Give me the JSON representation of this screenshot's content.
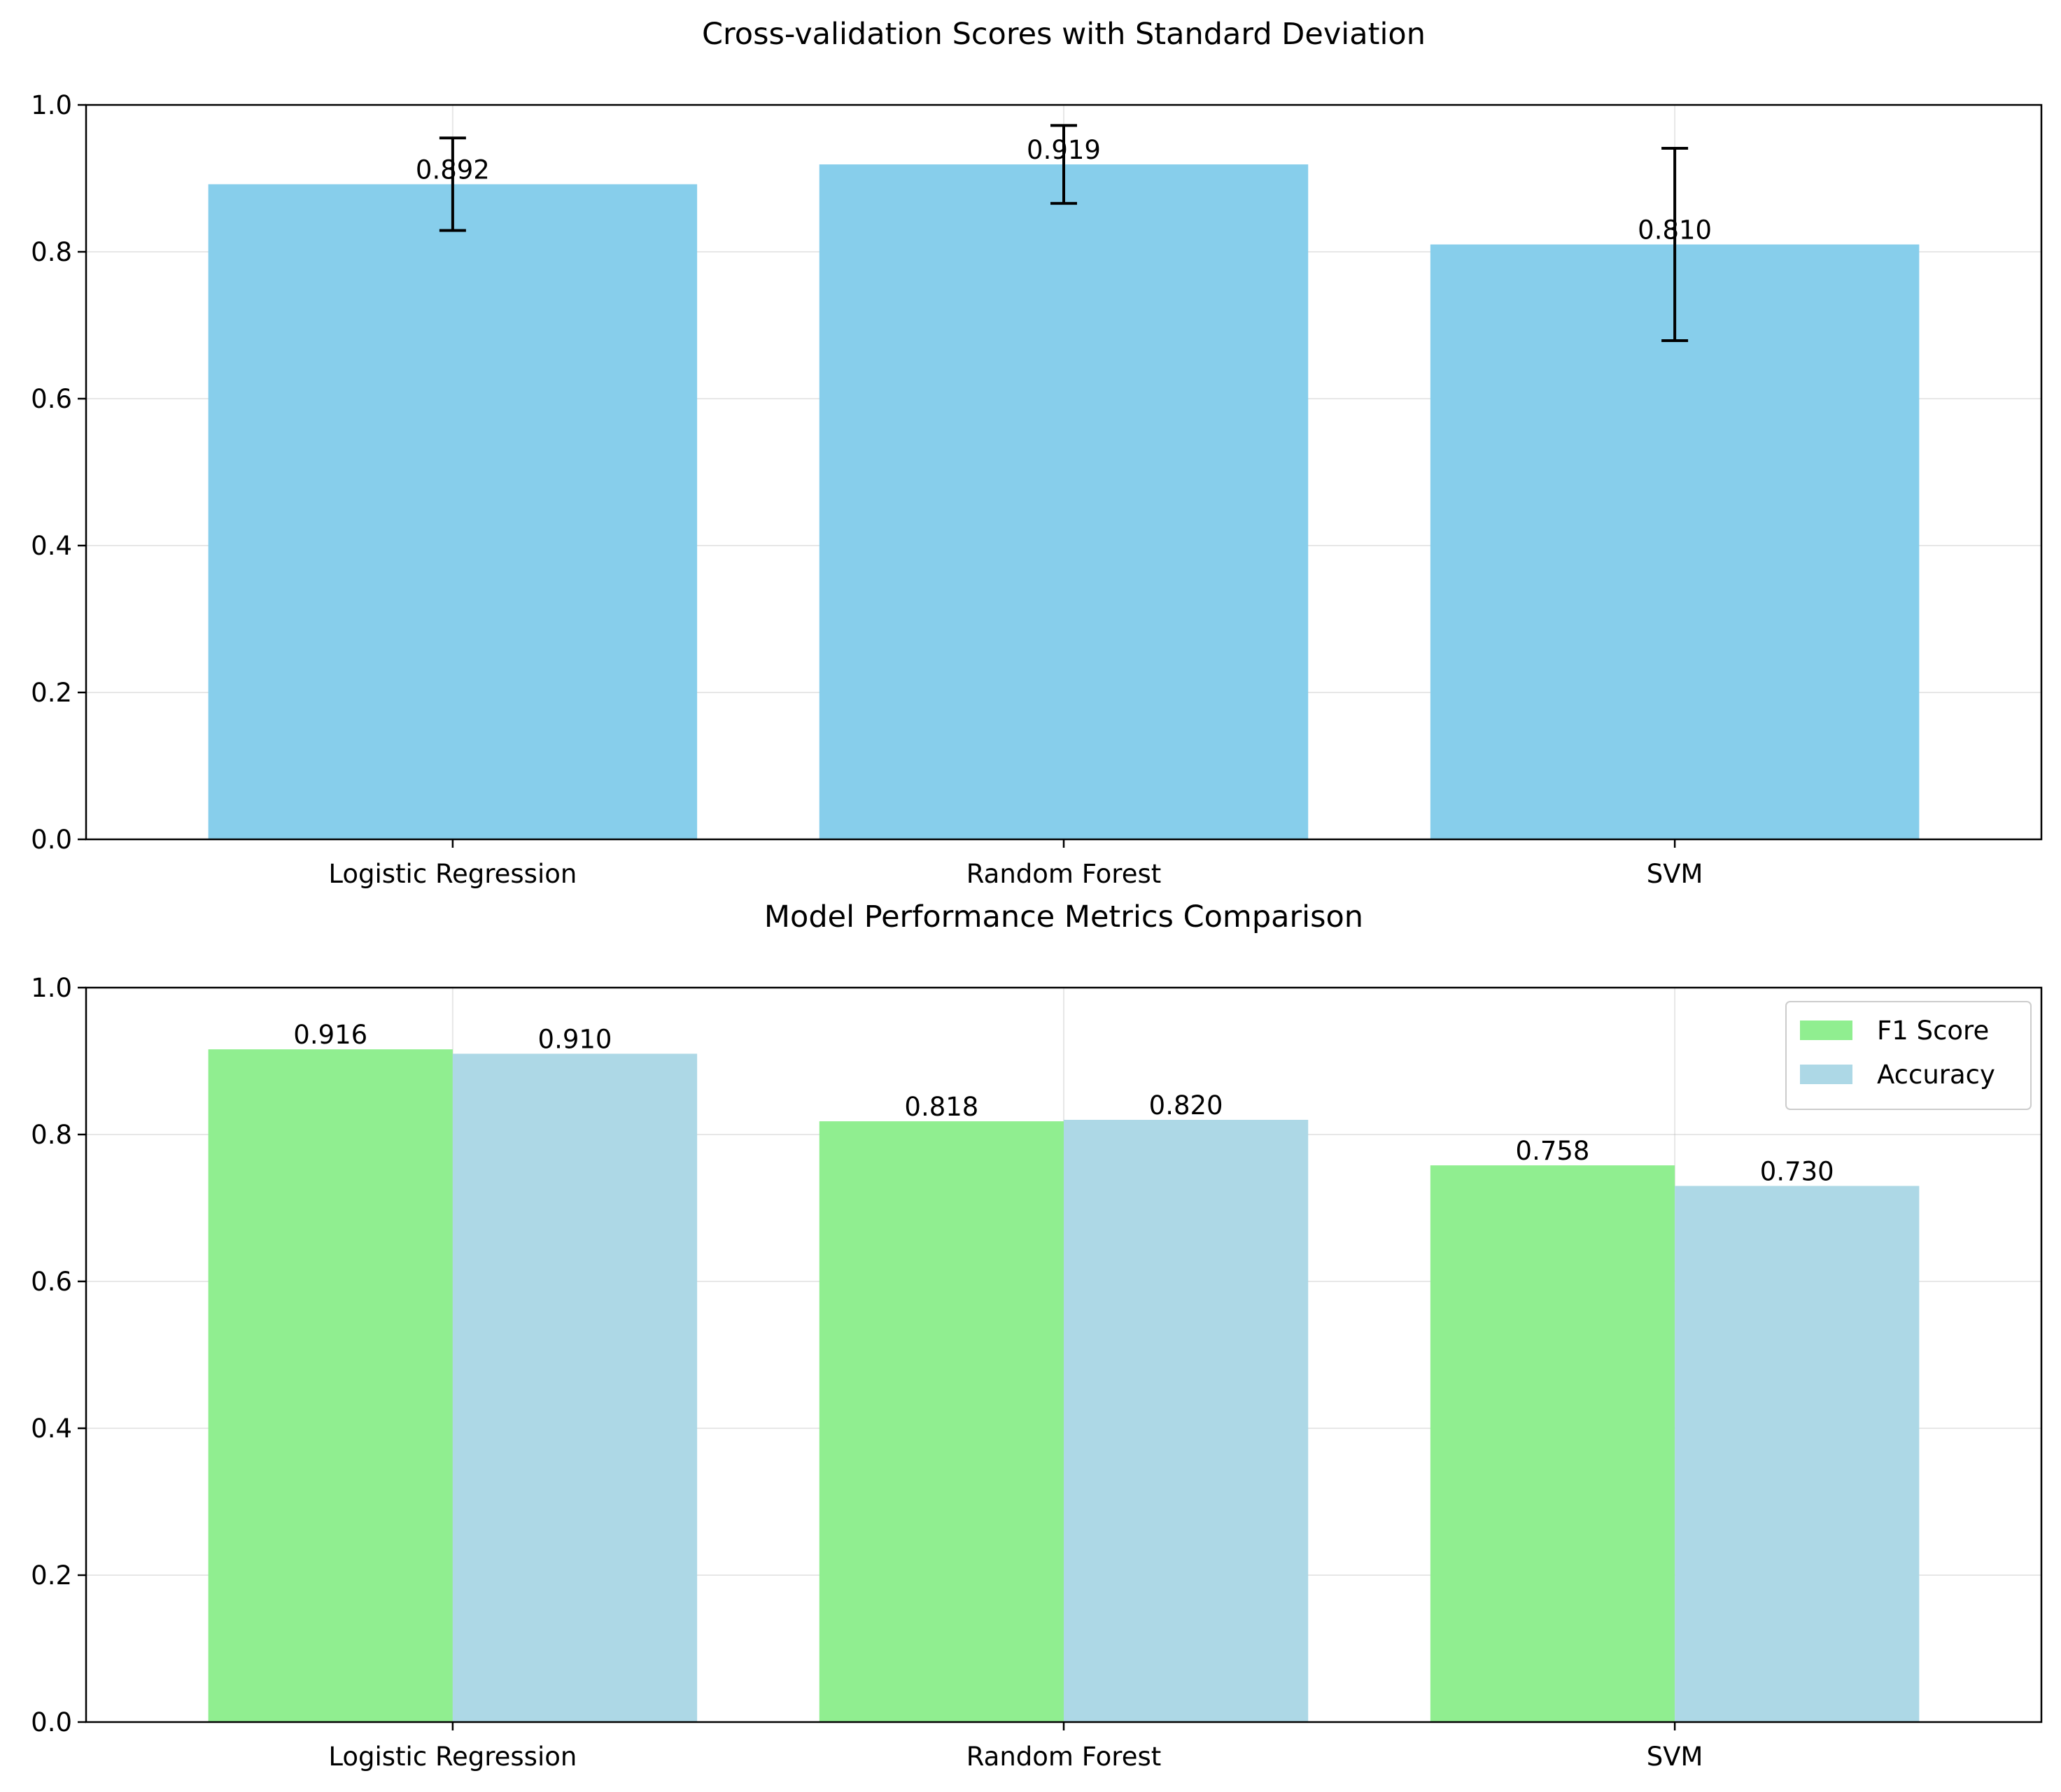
{
  "chart_data": [
    {
      "type": "bar",
      "title": "Cross-validation Scores with Standard Deviation",
      "xlabel": "",
      "ylabel": "",
      "ylim": [
        0,
        1.0
      ],
      "yticks": [
        "0.0",
        "0.2",
        "0.4",
        "0.6",
        "0.8",
        "1.0"
      ],
      "categories": [
        "Logistic Regression",
        "Random Forest",
        "SVM"
      ],
      "series": [
        {
          "values": [
            0.892,
            0.919,
            0.81
          ],
          "error": [
            0.063,
            0.053,
            0.131
          ],
          "labels": [
            "0.892",
            "0.919",
            "0.810"
          ],
          "color": "#87CEEB"
        }
      ],
      "grid": true,
      "legend": null
    },
    {
      "type": "bar",
      "title": "Model Performance Metrics Comparison",
      "xlabel": "",
      "ylabel": "",
      "ylim": [
        0,
        1.0
      ],
      "yticks": [
        "0.0",
        "0.2",
        "0.4",
        "0.6",
        "0.8",
        "1.0"
      ],
      "categories": [
        "Logistic Regression",
        "Random Forest",
        "SVM"
      ],
      "series": [
        {
          "name": "F1 Score",
          "values": [
            0.916,
            0.818,
            0.758
          ],
          "labels": [
            "0.916",
            "0.818",
            "0.758"
          ],
          "color": "#90EE90"
        },
        {
          "name": "Accuracy",
          "values": [
            0.91,
            0.82,
            0.73
          ],
          "labels": [
            "0.910",
            "0.820",
            "0.730"
          ],
          "color": "#ADD8E6"
        }
      ],
      "grid": true,
      "legend": "upper-right"
    }
  ]
}
